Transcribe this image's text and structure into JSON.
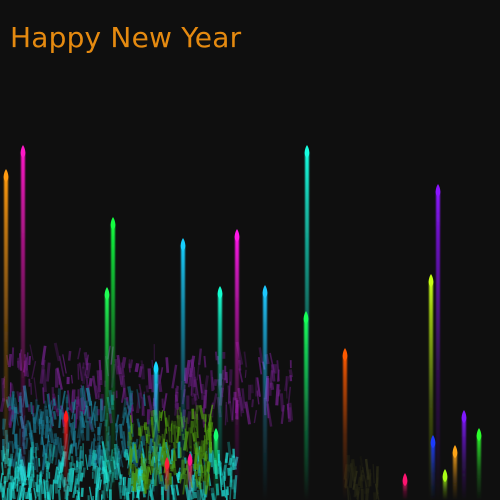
{
  "title": "Happy New Year",
  "colors": {
    "background": "#0f0f0f",
    "title": "#e58a10"
  },
  "rockets": [
    {
      "color": "#ff9a10"
    },
    {
      "color": "#ff18c8"
    },
    {
      "color": "#13ff40"
    },
    {
      "color": "#20ff55"
    },
    {
      "color": "#17cfff"
    },
    {
      "color": "#14ffd0"
    },
    {
      "color": "#ff18e8"
    },
    {
      "color": "#1ec8ff"
    },
    {
      "color": "#18ffe0"
    },
    {
      "color": "#16ff58"
    },
    {
      "color": "#ff5a00"
    },
    {
      "color": "#8a14ff"
    },
    {
      "color": "#c8ff14"
    },
    {
      "color": "#7f18ff"
    },
    {
      "color": "#18d8ff"
    },
    {
      "color": "#ff1a1a"
    },
    {
      "color": "#17ff70"
    },
    {
      "color": "#1c3bff"
    },
    {
      "color": "#ffa518"
    },
    {
      "color": "#aaff17"
    },
    {
      "color": "#2cff2c"
    },
    {
      "color": "#ff1470"
    },
    {
      "color": "#ff1d3a"
    },
    {
      "color": "#ff1888"
    }
  ],
  "bursts": [
    {
      "color": "#6b1f82"
    },
    {
      "color": "#1a7a93"
    },
    {
      "color": "#1ed6ce"
    },
    {
      "color": "#4f9d10"
    },
    {
      "color": "#2a2a16"
    }
  ]
}
